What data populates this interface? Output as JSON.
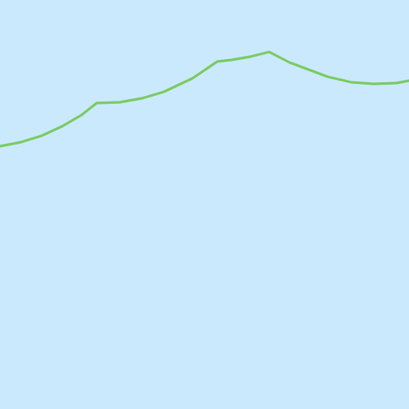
{
  "map": {
    "features": {
      "water": {
        "kind": "water-body",
        "color": "#cbe9fd"
      },
      "boundary": {
        "kind": "boundary-line",
        "color": "#7acb63"
      }
    }
  }
}
